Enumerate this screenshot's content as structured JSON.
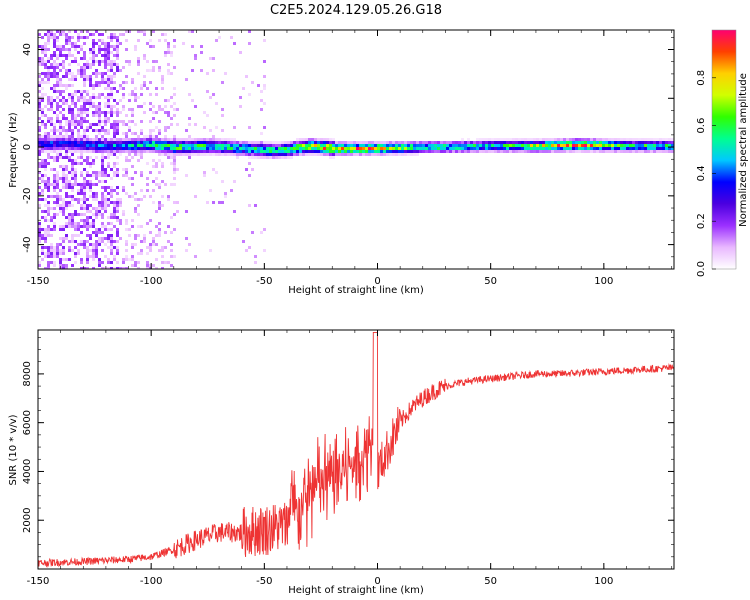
{
  "title": "C2E5.2024.129.05.26.G18",
  "chart_data": [
    {
      "type": "heatmap",
      "title": "C2E5.2024.129.05.26.G18",
      "xlabel": "Height of straight line (km)",
      "ylabel": "Frequency (Hz)",
      "xlim": [
        -150,
        131
      ],
      "ylim": [
        -50,
        48
      ],
      "x_ticks": [
        -150,
        -100,
        -50,
        0,
        50,
        100
      ],
      "y_ticks": [
        -40,
        -20,
        0,
        20,
        40
      ],
      "colorbar": {
        "label": "Normalized spectral amplitude",
        "range": [
          0.0,
          1.0
        ],
        "ticks": [
          0.0,
          0.2,
          0.4,
          0.6,
          0.8
        ],
        "colormap": [
          "#ffffff",
          "#e9b8ff",
          "#9b30ff",
          "#4b00e0",
          "#0000ff",
          "#00c8ff",
          "#00ff90",
          "#30ff00",
          "#d0ff00",
          "#ffd000",
          "#ff4000",
          "#ff0070"
        ]
      },
      "ridge": [
        {
          "x": -140,
          "f": 2,
          "a": 0.35
        },
        {
          "x": -120,
          "f": 1,
          "a": 0.4
        },
        {
          "x": -100,
          "f": 1.5,
          "a": 0.55
        },
        {
          "x": -90,
          "f": 0.5,
          "a": 0.6
        },
        {
          "x": -75,
          "f": 1,
          "a": 0.55
        },
        {
          "x": -60,
          "f": 0,
          "a": 0.5
        },
        {
          "x": -45,
          "f": -1,
          "a": 0.55
        },
        {
          "x": -30,
          "f": 1,
          "a": 0.7
        },
        {
          "x": -20,
          "f": 0,
          "a": 0.85
        },
        {
          "x": 0,
          "f": 0,
          "a": 0.8
        },
        {
          "x": 20,
          "f": 0.5,
          "a": 0.55
        },
        {
          "x": 50,
          "f": 1,
          "a": 0.5
        },
        {
          "x": 70,
          "f": 1,
          "a": 0.7
        },
        {
          "x": 90,
          "f": 1.5,
          "a": 0.9
        },
        {
          "x": 110,
          "f": 1,
          "a": 0.55
        },
        {
          "x": 130,
          "f": 1,
          "a": 0.55
        }
      ]
    },
    {
      "type": "line",
      "xlabel": "Height of straight line (km)",
      "ylabel": "SNR (10 * v/v)",
      "xlim": [
        -150,
        131
      ],
      "ylim": [
        0,
        9800
      ],
      "x_ticks": [
        -150,
        -100,
        -50,
        0,
        50,
        100
      ],
      "y_ticks": [
        2000,
        4000,
        6000,
        8000
      ],
      "color": "#ee3333",
      "series": [
        {
          "x": [
            -150,
            -130,
            -110,
            -100,
            -90,
            -80,
            -70,
            -60,
            -50,
            -40,
            -35,
            -30,
            -25,
            -20,
            -15,
            -10,
            -5,
            -2,
            0,
            5,
            10,
            15,
            20,
            25,
            30,
            40,
            50,
            60,
            70,
            80,
            90,
            100,
            110,
            120,
            131
          ],
          "values": [
            250,
            300,
            400,
            500,
            800,
            1200,
            1500,
            1500,
            1600,
            1800,
            2500,
            3000,
            3500,
            3700,
            4000,
            4400,
            4800,
            5500,
            4000,
            5000,
            6000,
            6600,
            7000,
            7300,
            7500,
            7700,
            7800,
            7900,
            8000,
            8000,
            8050,
            8100,
            8150,
            8200,
            8250
          ]
        }
      ]
    }
  ]
}
